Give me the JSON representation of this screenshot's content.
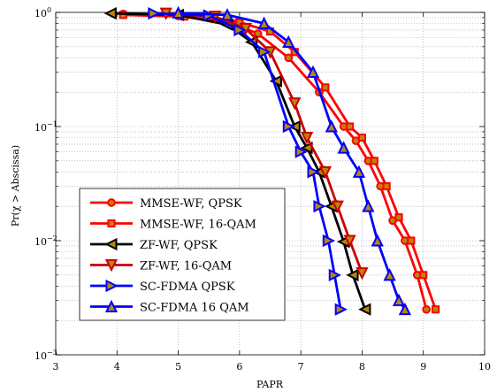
{
  "chart_data": {
    "type": "line",
    "title": "",
    "xlabel": "PAPR",
    "ylabel": "Pr(χ > Abscissa)",
    "xscale": "linear",
    "yscale": "log",
    "xlim": [
      3,
      10
    ],
    "ylim": [
      0.001,
      1
    ],
    "grid": true,
    "legend_position": "bottom-left",
    "x_ticks": [
      "3",
      "4",
      "5",
      "6",
      "7",
      "8",
      "9",
      "10"
    ],
    "y_ticks": [
      {
        "value": 1,
        "base": "10",
        "exp": "0"
      },
      {
        "value": 0.1,
        "base": "10",
        "exp": "−1"
      },
      {
        "value": 0.01,
        "base": "10",
        "exp": "−2"
      },
      {
        "value": 0.001,
        "base": "10",
        "exp": "−3"
      }
    ],
    "series": [
      {
        "name": "MMSE-WF, QPSK",
        "color": "#ff0000",
        "marker": "circle",
        "x": [
          4.1,
          5.0,
          5.9,
          6.3,
          6.8,
          7.3,
          7.7,
          7.9,
          8.1,
          8.3,
          8.5,
          8.7,
          8.9,
          9.05
        ],
        "y": [
          0.97,
          0.93,
          0.8,
          0.65,
          0.4,
          0.2,
          0.1,
          0.075,
          0.05,
          0.03,
          0.015,
          0.01,
          0.005,
          0.0025
        ]
      },
      {
        "name": "MMSE-WF, 16-QAM",
        "color": "#ff0000",
        "marker": "square",
        "x": [
          4.1,
          5.1,
          6.0,
          6.5,
          6.9,
          7.4,
          7.8,
          8.0,
          8.2,
          8.4,
          8.6,
          8.8,
          9.0,
          9.2
        ],
        "y": [
          0.95,
          0.92,
          0.82,
          0.68,
          0.45,
          0.22,
          0.1,
          0.08,
          0.05,
          0.03,
          0.016,
          0.01,
          0.005,
          0.0025
        ]
      },
      {
        "name": "ZF-WF, QPSK",
        "color": "#000000",
        "marker": "triangle-left",
        "x": [
          3.9,
          5.0,
          5.8,
          6.2,
          6.6,
          6.9,
          7.1,
          7.3,
          7.5,
          7.7,
          7.85,
          8.05
        ],
        "y": [
          0.98,
          0.95,
          0.78,
          0.55,
          0.25,
          0.1,
          0.065,
          0.04,
          0.02,
          0.0098,
          0.005,
          0.0025
        ]
      },
      {
        "name": "ZF-WF, 16-QAM",
        "color": "#cc0000",
        "marker": "triangle-down",
        "x": [
          4.8,
          5.6,
          6.1,
          6.5,
          6.9,
          7.1,
          7.4,
          7.6,
          7.8,
          8.0
        ],
        "y": [
          0.98,
          0.92,
          0.72,
          0.45,
          0.16,
          0.08,
          0.04,
          0.02,
          0.01,
          0.0052
        ]
      },
      {
        "name": "SC-FDMA QPSK",
        "color": "#0000ff",
        "marker": "triangle-right",
        "x": [
          4.6,
          5.5,
          6.0,
          6.4,
          6.8,
          7.0,
          7.2,
          7.3,
          7.45,
          7.55,
          7.65
        ],
        "y": [
          0.98,
          0.94,
          0.7,
          0.45,
          0.1,
          0.06,
          0.04,
          0.02,
          0.01,
          0.005,
          0.0025
        ]
      },
      {
        "name": "SC-FDMA 16 QAM",
        "color": "#0000ff",
        "marker": "triangle-up",
        "x": [
          5.0,
          5.8,
          6.4,
          6.8,
          7.2,
          7.5,
          7.7,
          7.95,
          8.1,
          8.25,
          8.45,
          8.6,
          8.7
        ],
        "y": [
          0.99,
          0.95,
          0.8,
          0.55,
          0.3,
          0.1,
          0.065,
          0.04,
          0.02,
          0.01,
          0.005,
          0.003,
          0.0025
        ]
      }
    ]
  }
}
